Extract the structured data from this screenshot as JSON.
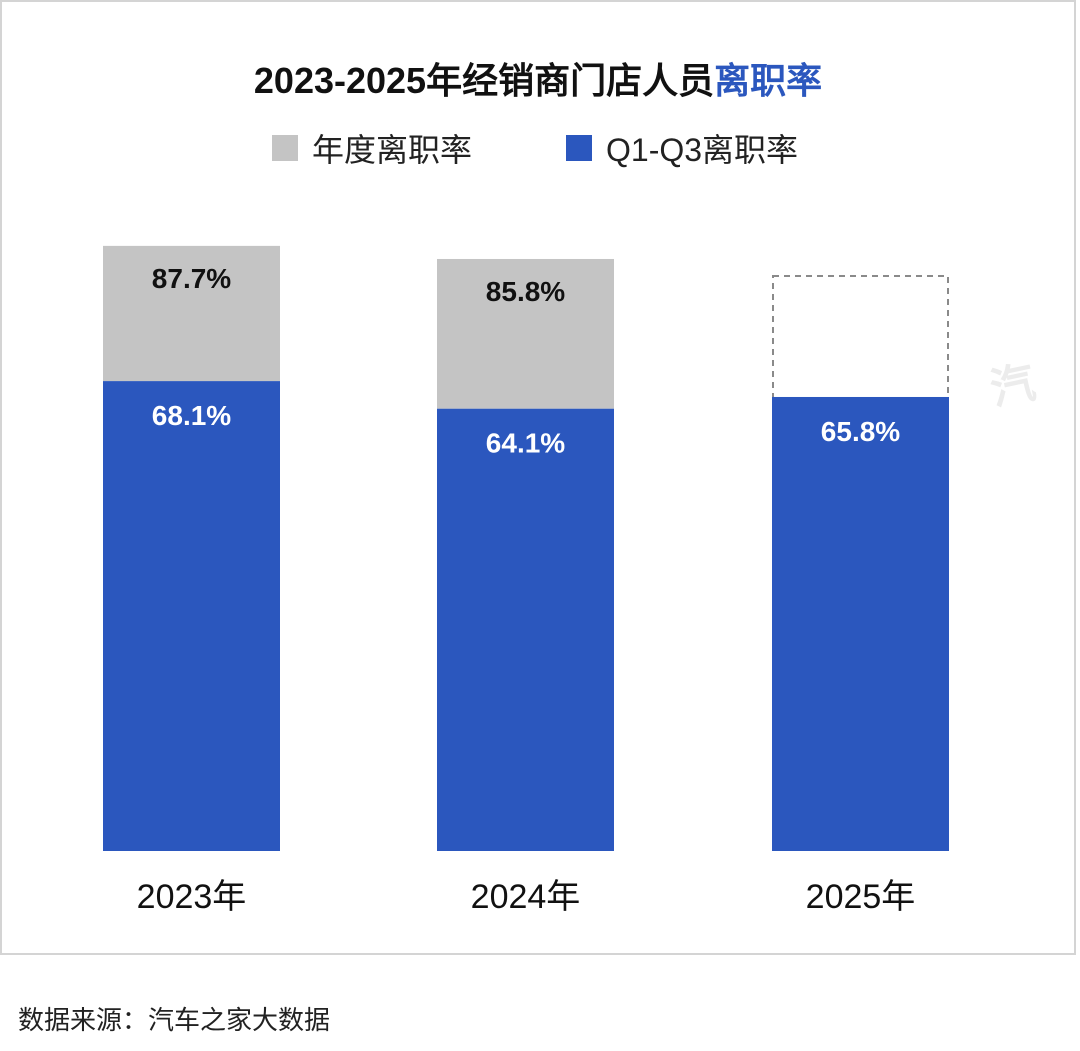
{
  "title": {
    "main": "2023-2025年经销商门店人员",
    "accent": "离职率"
  },
  "legend": [
    {
      "label": "年度离职率",
      "color": "#c4c4c4"
    },
    {
      "label": "Q1-Q3离职率",
      "color": "#2b57be"
    }
  ],
  "chart_data": {
    "type": "bar",
    "categories": [
      "2023年",
      "2024年",
      "2025年"
    ],
    "series": [
      {
        "name": "年度离职率",
        "values": [
          87.7,
          85.8,
          null
        ],
        "labels": [
          "87.7%",
          "85.8%",
          ""
        ],
        "color": "#c4c4c4"
      },
      {
        "name": "Q1-Q3离职率",
        "values": [
          68.1,
          64.1,
          65.8
        ],
        "labels": [
          "68.1%",
          "64.1%",
          "65.8%"
        ],
        "color": "#2b57be"
      }
    ],
    "annotations": [
      "2025年 年度离职率 pending (dashed outline)"
    ],
    "ylim": [
      0,
      100
    ],
    "grid": false,
    "legend_position": "top-center"
  },
  "source": "数据来源：汽车之家大数据",
  "watermark": "汽"
}
